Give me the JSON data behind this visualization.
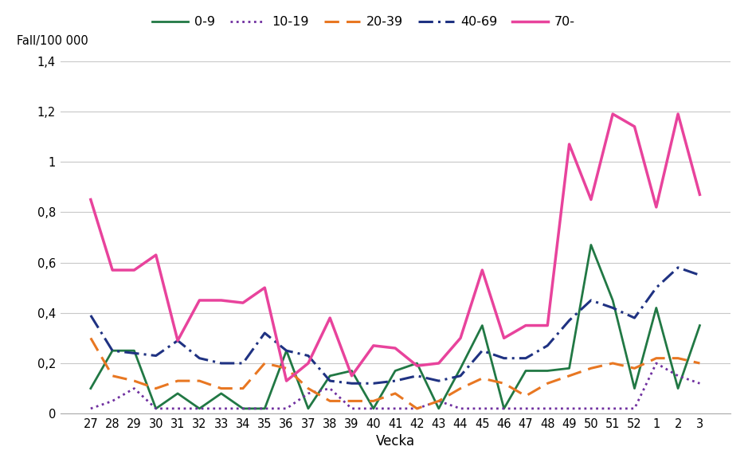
{
  "weeks": [
    27,
    28,
    29,
    30,
    31,
    32,
    33,
    34,
    35,
    36,
    37,
    38,
    39,
    40,
    41,
    42,
    43,
    44,
    45,
    46,
    47,
    48,
    49,
    50,
    51,
    52,
    1,
    2,
    3
  ],
  "series": {
    "0-9": [
      0.1,
      0.25,
      0.25,
      0.02,
      0.08,
      0.02,
      0.08,
      0.02,
      0.02,
      0.25,
      0.02,
      0.15,
      0.17,
      0.02,
      0.17,
      0.2,
      0.02,
      0.18,
      0.35,
      0.02,
      0.17,
      0.17,
      0.18,
      0.67,
      0.45,
      0.1,
      0.42,
      0.1,
      0.35
    ],
    "10-19": [
      0.02,
      0.05,
      0.1,
      0.02,
      0.02,
      0.02,
      0.02,
      0.02,
      0.02,
      0.02,
      0.08,
      0.1,
      0.02,
      0.02,
      0.02,
      0.02,
      0.05,
      0.02,
      0.02,
      0.02,
      0.02,
      0.02,
      0.02,
      0.02,
      0.02,
      0.02,
      0.2,
      0.15,
      0.12
    ],
    "20-39": [
      0.3,
      0.15,
      0.13,
      0.1,
      0.13,
      0.13,
      0.1,
      0.1,
      0.2,
      0.18,
      0.1,
      0.05,
      0.05,
      0.05,
      0.08,
      0.02,
      0.05,
      0.1,
      0.14,
      0.12,
      0.07,
      0.12,
      0.15,
      0.18,
      0.2,
      0.18,
      0.22,
      0.22,
      0.2
    ],
    "40-69": [
      0.39,
      0.25,
      0.24,
      0.23,
      0.29,
      0.22,
      0.2,
      0.2,
      0.32,
      0.25,
      0.23,
      0.13,
      0.12,
      0.12,
      0.13,
      0.15,
      0.13,
      0.15,
      0.25,
      0.22,
      0.22,
      0.27,
      0.37,
      0.45,
      0.42,
      0.38,
      0.5,
      0.58,
      0.55
    ],
    "70-": [
      0.85,
      0.57,
      0.57,
      0.63,
      0.29,
      0.45,
      0.45,
      0.44,
      0.5,
      0.13,
      0.2,
      0.38,
      0.15,
      0.27,
      0.26,
      0.19,
      0.2,
      0.3,
      0.57,
      0.3,
      0.35,
      0.35,
      1.07,
      0.85,
      1.19,
      1.14,
      0.82,
      1.19,
      0.87
    ]
  },
  "colors": {
    "0-9": "#217844",
    "10-19": "#7030A0",
    "20-39": "#E87722",
    "40-69": "#1F3282",
    "70-": "#E8439C"
  },
  "linewidths": {
    "0-9": 2.0,
    "10-19": 2.0,
    "20-39": 2.2,
    "40-69": 2.2,
    "70-": 2.5
  },
  "ylabel": "Fall/100 000",
  "xlabel": "Vecka",
  "ylim": [
    0,
    1.4
  ],
  "yticks": [
    0,
    0.2,
    0.4,
    0.6,
    0.8,
    1.0,
    1.2,
    1.4
  ],
  "ytick_labels": [
    "0",
    "0,2",
    "0,4",
    "0,6",
    "0,8",
    "1",
    "1,2",
    "1,4"
  ],
  "background_color": "#ffffff",
  "grid_color": "#c8c8c8",
  "legend_order": [
    "0-9",
    "10-19",
    "20-39",
    "40-69",
    "70-"
  ]
}
